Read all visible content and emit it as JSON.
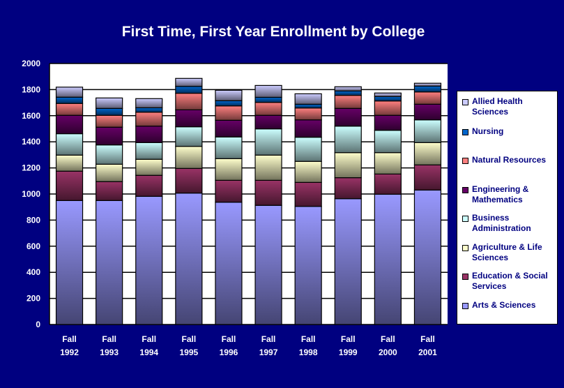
{
  "chart_data": {
    "type": "bar",
    "stacked": true,
    "title": "First Time, First Year Enrollment by College",
    "categories": [
      [
        "Fall",
        "1992"
      ],
      [
        "Fall",
        "1993"
      ],
      [
        "Fall",
        "1994"
      ],
      [
        "Fall",
        "1995"
      ],
      [
        "Fall",
        "1996"
      ],
      [
        "Fall",
        "1997"
      ],
      [
        "Fall",
        "1998"
      ],
      [
        "Fall",
        "1999"
      ],
      [
        "Fall",
        "2000"
      ],
      [
        "Fall",
        "2001"
      ]
    ],
    "ylim": [
      0,
      2000
    ],
    "yticks": [
      0,
      200,
      400,
      600,
      800,
      1000,
      1200,
      1400,
      1600,
      1800,
      2000
    ],
    "grid": true,
    "legend_position": "right",
    "series": [
      {
        "name": "Arts & Sciences",
        "color": "#9999ff",
        "values": [
          950,
          950,
          982,
          1007,
          937,
          913,
          905,
          964,
          998,
          1030
        ]
      },
      {
        "name": "Education & Social Services",
        "color": "#993366",
        "values": [
          225,
          145,
          161,
          189,
          168,
          192,
          184,
          161,
          155,
          193
        ]
      },
      {
        "name": "Agriculture & Life Sciences",
        "color": "#ffffcc",
        "values": [
          123,
          133,
          123,
          169,
          166,
          193,
          161,
          192,
          164,
          171
        ]
      },
      {
        "name": "Business Administration",
        "color": "#ccffff",
        "values": [
          164,
          148,
          128,
          150,
          166,
          201,
          185,
          203,
          171,
          174
        ]
      },
      {
        "name": "Engineering & Mathematics",
        "color": "#660066",
        "values": [
          141,
          136,
          126,
          130,
          128,
          104,
          133,
          136,
          115,
          120
        ]
      },
      {
        "name": "Natural Resources",
        "color": "#ff8080",
        "values": [
          91,
          91,
          107,
          127,
          110,
          99,
          91,
          100,
          110,
          94
        ]
      },
      {
        "name": "Nursing",
        "color": "#0066cc",
        "values": [
          48,
          53,
          34,
          53,
          40,
          39,
          29,
          34,
          34,
          45
        ]
      },
      {
        "name": "Allied Health Sciences",
        "color": "#ccccff",
        "values": [
          77,
          80,
          70,
          61,
          80,
          91,
          80,
          32,
          27,
          22
        ]
      }
    ]
  }
}
